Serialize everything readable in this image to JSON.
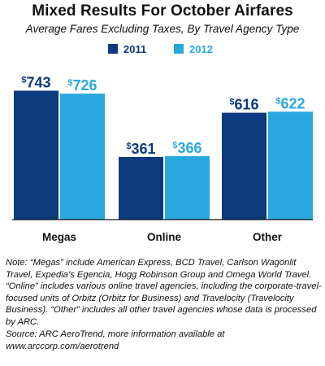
{
  "chart_data": {
    "type": "bar",
    "title": "Mixed Results For October Airfares",
    "subtitle": "Average Fares Excluding Taxes, By Travel Agency Type",
    "categories": [
      "Megas",
      "Online",
      "Other"
    ],
    "series": [
      {
        "name": "2011",
        "values": [
          743,
          361,
          616
        ],
        "labels": [
          "743",
          "361",
          "616"
        ],
        "color": "#0b3a7e"
      },
      {
        "name": "2012",
        "values": [
          726,
          366,
          622
        ],
        "labels": [
          "726",
          "366",
          "622"
        ],
        "color": "#29a8e0"
      }
    ],
    "currency_symbol": "$",
    "ylim": [
      0,
      900
    ],
    "grid": false,
    "legend_position": "top-center",
    "baseline_color": "#111111"
  },
  "note": "Note: “Megas” include American Express, BCD Travel, Carlson Wagonlit Travel, Expedia’s Egencia, Hogg Robinson Group and Omega World Travel. “Online” includes various online travel agencies, including the corporate-travel-focused units of Orbitz (Orbitz for Business) and Travelocity (Travelocity Business). “Other” includes all other travel agencies whose data is processed by ARC.",
  "source": "Source: ARC AeroTrend, more information available at www.arccorp.com/aerotrend"
}
